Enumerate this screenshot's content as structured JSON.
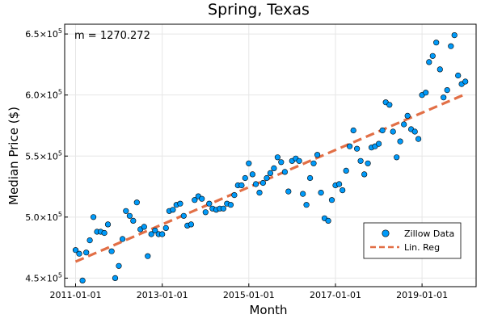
{
  "chart_data": {
    "type": "scatter",
    "title": "Spring, Texas",
    "xlabel": "Month",
    "ylabel": "Median Price ($)",
    "annotation": "m = 1270.272",
    "x_range": [
      "2010-10-01",
      "2020-04-01"
    ],
    "ylim": [
      443000,
      658000
    ],
    "grid": true,
    "legend_position": "bottom-right",
    "x_ticks": [
      "2011-01-01",
      "2013-01-01",
      "2015-01-01",
      "2017-01-01",
      "2019-01-01"
    ],
    "y_ticks": [
      {
        "value": 450000,
        "mantissa": "4.5",
        "exponent": "5"
      },
      {
        "value": 500000,
        "mantissa": "5.0",
        "exponent": "5"
      },
      {
        "value": 550000,
        "mantissa": "5.5",
        "exponent": "5"
      },
      {
        "value": 600000,
        "mantissa": "6.0",
        "exponent": "5"
      },
      {
        "value": 650000,
        "mantissa": "6.5",
        "exponent": "5"
      }
    ],
    "colors": {
      "points": "#009af9",
      "regression": "#e26f46"
    },
    "series": [
      {
        "name": "Zillow Data",
        "kind": "scatter",
        "points": [
          [
            "2011-01-01",
            473000
          ],
          [
            "2011-02-01",
            470000
          ],
          [
            "2011-03-01",
            448000
          ],
          [
            "2011-04-01",
            471000
          ],
          [
            "2011-05-01",
            481000
          ],
          [
            "2011-06-01",
            500000
          ],
          [
            "2011-07-01",
            488000
          ],
          [
            "2011-08-01",
            488000
          ],
          [
            "2011-09-01",
            487000
          ],
          [
            "2011-10-01",
            494000
          ],
          [
            "2011-11-01",
            472000
          ],
          [
            "2011-12-01",
            450000
          ],
          [
            "2012-01-01",
            460000
          ],
          [
            "2012-02-01",
            482000
          ],
          [
            "2012-03-01",
            505000
          ],
          [
            "2012-04-01",
            501000
          ],
          [
            "2012-05-01",
            497000
          ],
          [
            "2012-06-01",
            512000
          ],
          [
            "2012-07-01",
            490000
          ],
          [
            "2012-08-01",
            492000
          ],
          [
            "2012-09-01",
            468000
          ],
          [
            "2012-10-01",
            486000
          ],
          [
            "2012-11-01",
            489000
          ],
          [
            "2012-12-01",
            486000
          ],
          [
            "2013-01-01",
            486000
          ],
          [
            "2013-02-01",
            491000
          ],
          [
            "2013-03-01",
            505000
          ],
          [
            "2013-04-01",
            506000
          ],
          [
            "2013-05-01",
            510000
          ],
          [
            "2013-06-01",
            511000
          ],
          [
            "2013-07-01",
            501000
          ],
          [
            "2013-08-01",
            493000
          ],
          [
            "2013-09-01",
            494000
          ],
          [
            "2013-10-01",
            514000
          ],
          [
            "2013-11-01",
            517000
          ],
          [
            "2013-12-01",
            515000
          ],
          [
            "2014-01-01",
            504000
          ],
          [
            "2014-02-01",
            511000
          ],
          [
            "2014-03-01",
            507000
          ],
          [
            "2014-04-01",
            506000
          ],
          [
            "2014-05-01",
            507000
          ],
          [
            "2014-06-01",
            507000
          ],
          [
            "2014-07-01",
            511000
          ],
          [
            "2014-08-01",
            510000
          ],
          [
            "2014-09-01",
            518000
          ],
          [
            "2014-10-01",
            526000
          ],
          [
            "2014-11-01",
            526000
          ],
          [
            "2014-12-01",
            532000
          ],
          [
            "2015-01-01",
            544000
          ],
          [
            "2015-02-01",
            535000
          ],
          [
            "2015-03-01",
            527000
          ],
          [
            "2015-04-01",
            520000
          ],
          [
            "2015-05-01",
            528000
          ],
          [
            "2015-06-01",
            532000
          ],
          [
            "2015-07-01",
            536000
          ],
          [
            "2015-08-01",
            540000
          ],
          [
            "2015-09-01",
            549000
          ],
          [
            "2015-10-01",
            545000
          ],
          [
            "2015-11-01",
            537000
          ],
          [
            "2015-12-01",
            521000
          ],
          [
            "2016-01-01",
            546000
          ],
          [
            "2016-02-01",
            548000
          ],
          [
            "2016-03-01",
            546000
          ],
          [
            "2016-04-01",
            519000
          ],
          [
            "2016-05-01",
            510000
          ],
          [
            "2016-06-01",
            532000
          ],
          [
            "2016-07-01",
            544000
          ],
          [
            "2016-08-01",
            551000
          ],
          [
            "2016-09-01",
            520000
          ],
          [
            "2016-10-01",
            499000
          ],
          [
            "2016-11-01",
            497000
          ],
          [
            "2016-12-01",
            514000
          ],
          [
            "2017-01-01",
            526000
          ],
          [
            "2017-02-01",
            527000
          ],
          [
            "2017-03-01",
            522000
          ],
          [
            "2017-04-01",
            538000
          ],
          [
            "2017-05-01",
            558000
          ],
          [
            "2017-06-01",
            571000
          ],
          [
            "2017-07-01",
            556000
          ],
          [
            "2017-08-01",
            546000
          ],
          [
            "2017-09-01",
            535000
          ],
          [
            "2017-10-01",
            544000
          ],
          [
            "2017-11-01",
            557000
          ],
          [
            "2017-12-01",
            558000
          ],
          [
            "2018-01-01",
            560000
          ],
          [
            "2018-02-01",
            571000
          ],
          [
            "2018-03-01",
            594000
          ],
          [
            "2018-04-01",
            592000
          ],
          [
            "2018-05-01",
            570000
          ],
          [
            "2018-06-01",
            549000
          ],
          [
            "2018-07-01",
            562000
          ],
          [
            "2018-08-01",
            576000
          ],
          [
            "2018-09-01",
            583000
          ],
          [
            "2018-10-01",
            572000
          ],
          [
            "2018-11-01",
            570000
          ],
          [
            "2018-12-01",
            564000
          ],
          [
            "2019-01-01",
            600000
          ],
          [
            "2019-02-01",
            602000
          ],
          [
            "2019-03-01",
            627000
          ],
          [
            "2019-04-01",
            632000
          ],
          [
            "2019-05-01",
            643000
          ],
          [
            "2019-06-01",
            621000
          ],
          [
            "2019-07-01",
            598000
          ],
          [
            "2019-08-01",
            604000
          ],
          [
            "2019-09-01",
            640000
          ],
          [
            "2019-10-01",
            649000
          ],
          [
            "2019-11-01",
            616000
          ],
          [
            "2019-12-01",
            609000
          ],
          [
            "2020-01-01",
            611000
          ]
        ]
      },
      {
        "name": "Lin. Reg",
        "kind": "line",
        "style": "dashed",
        "points": [
          [
            "2011-01-01",
            463500
          ],
          [
            "2020-01-01",
            600700
          ]
        ]
      }
    ]
  }
}
